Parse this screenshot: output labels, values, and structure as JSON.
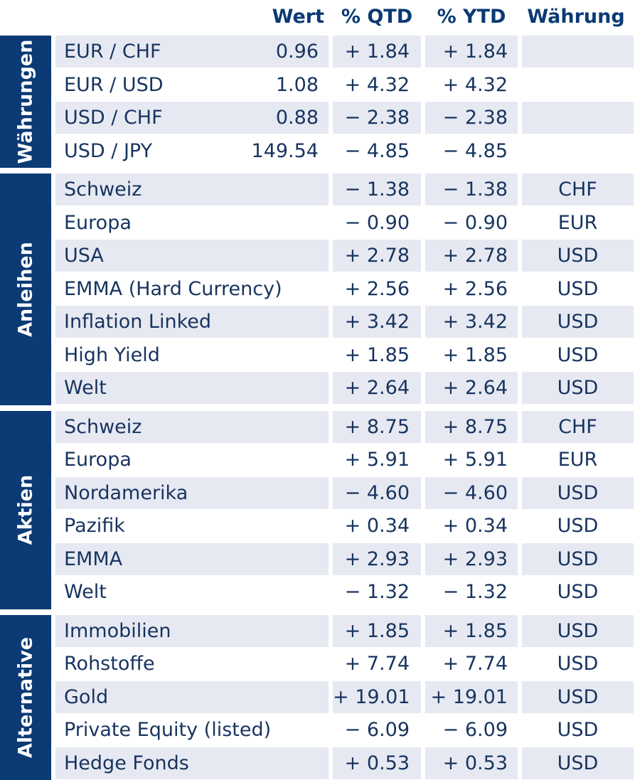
{
  "header": {
    "wert": "Wert",
    "qtd": "% QTD",
    "ytd": "% YTD",
    "currency": "Währung"
  },
  "groups": [
    {
      "label": "Währungen",
      "rows": [
        {
          "name": "EUR / CHF",
          "value": "0.96",
          "qtd": "+ 1.84",
          "ytd": "+ 1.84",
          "currency": ""
        },
        {
          "name": "EUR / USD",
          "value": "1.08",
          "qtd": "+ 4.32",
          "ytd": "+ 4.32",
          "currency": ""
        },
        {
          "name": "USD / CHF",
          "value": "0.88",
          "qtd": "− 2.38",
          "ytd": "− 2.38",
          "currency": ""
        },
        {
          "name": "USD / JPY",
          "value": "149.54",
          "qtd": "− 4.85",
          "ytd": "− 4.85",
          "currency": ""
        }
      ]
    },
    {
      "label": "Anleihen",
      "rows": [
        {
          "name": "Schweiz",
          "value": "",
          "qtd": "− 1.38",
          "ytd": "− 1.38",
          "currency": "CHF"
        },
        {
          "name": "Europa",
          "value": "",
          "qtd": "− 0.90",
          "ytd": "− 0.90",
          "currency": "EUR"
        },
        {
          "name": "USA",
          "value": "",
          "qtd": "+ 2.78",
          "ytd": "+ 2.78",
          "currency": "USD"
        },
        {
          "name": "EMMA (Hard Currency)",
          "value": "",
          "qtd": "+ 2.56",
          "ytd": "+ 2.56",
          "currency": "USD"
        },
        {
          "name": "Inflation Linked",
          "value": "",
          "qtd": "+ 3.42",
          "ytd": "+ 3.42",
          "currency": "USD"
        },
        {
          "name": "High Yield",
          "value": "",
          "qtd": "+ 1.85",
          "ytd": "+ 1.85",
          "currency": "USD"
        },
        {
          "name": "Welt",
          "value": "",
          "qtd": "+ 2.64",
          "ytd": "+ 2.64",
          "currency": "USD"
        }
      ]
    },
    {
      "label": "Aktien",
      "rows": [
        {
          "name": "Schweiz",
          "value": "",
          "qtd": "+ 8.75",
          "ytd": "+ 8.75",
          "currency": "CHF"
        },
        {
          "name": "Europa",
          "value": "",
          "qtd": "+ 5.91",
          "ytd": "+ 5.91",
          "currency": "EUR"
        },
        {
          "name": "Nordamerika",
          "value": "",
          "qtd": "− 4.60",
          "ytd": "− 4.60",
          "currency": "USD"
        },
        {
          "name": "Pazifik",
          "value": "",
          "qtd": "+ 0.34",
          "ytd": "+ 0.34",
          "currency": "USD"
        },
        {
          "name": "EMMA",
          "value": "",
          "qtd": "+ 2.93",
          "ytd": "+ 2.93",
          "currency": "USD"
        },
        {
          "name": "Welt",
          "value": "",
          "qtd": "− 1.32",
          "ytd": "− 1.32",
          "currency": "USD"
        }
      ]
    },
    {
      "label": "Alternative",
      "rows": [
        {
          "name": "Immobilien",
          "value": "",
          "qtd": "+ 1.85",
          "ytd": "+ 1.85",
          "currency": "USD"
        },
        {
          "name": "Rohstoffe",
          "value": "",
          "qtd": "+ 7.74",
          "ytd": "+ 7.74",
          "currency": "USD"
        },
        {
          "name": "Gold",
          "value": "",
          "qtd": "+ 19.01",
          "ytd": "+ 19.01",
          "currency": "USD"
        },
        {
          "name": "Private Equity (listed)",
          "value": "",
          "qtd": "− 6.09",
          "ytd": "− 6.09",
          "currency": "USD"
        },
        {
          "name": "Hedge Fonds",
          "value": "",
          "qtd": "+ 0.53",
          "ytd": "+ 0.53",
          "currency": "USD"
        }
      ]
    }
  ],
  "colors": {
    "accent": "#0b3a75",
    "text": "#17345f",
    "shade": "#e7e9f2"
  }
}
